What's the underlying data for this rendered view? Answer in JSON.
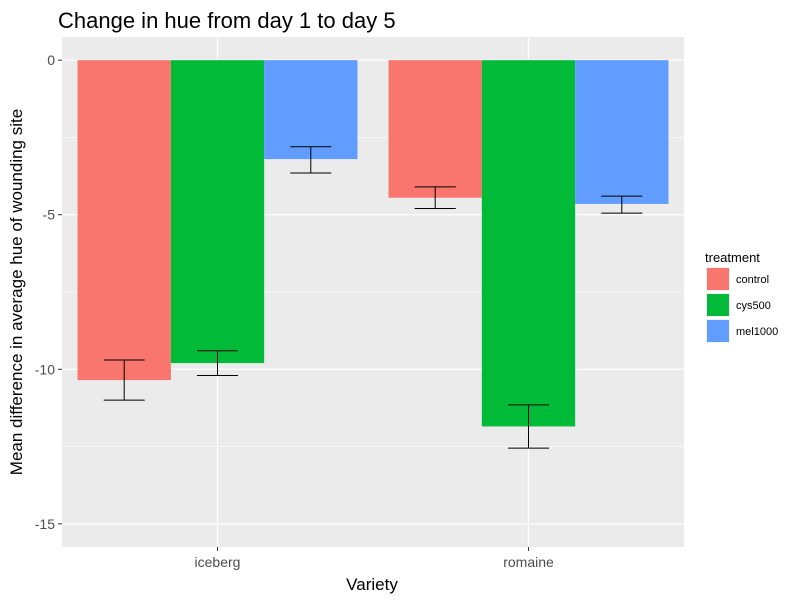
{
  "chart_data": {
    "type": "bar",
    "title": "Change in hue from day 1 to day 5",
    "xlabel": "Variety",
    "ylabel": "Mean difference in average hue of wounding site",
    "categories": [
      "iceberg",
      "romaine"
    ],
    "series": [
      {
        "name": "control",
        "color": "#F8766D",
        "values": [
          -10.35,
          -4.45
        ],
        "error_low": [
          -11.0,
          -4.8
        ],
        "error_high": [
          -9.7,
          -4.1
        ]
      },
      {
        "name": "cys500",
        "color": "#00BA38",
        "values": [
          -9.8,
          -11.85
        ],
        "error_low": [
          -10.2,
          -12.55
        ],
        "error_high": [
          -9.4,
          -11.15
        ]
      },
      {
        "name": "mel1000",
        "color": "#619CFF",
        "values": [
          -3.2,
          -4.65
        ],
        "error_low": [
          -3.65,
          -4.95
        ],
        "error_high": [
          -2.8,
          -4.4
        ]
      }
    ],
    "ylim": [
      -15.75,
      0.75
    ],
    "yticks": [
      0,
      -5,
      -10,
      -15
    ],
    "ytick_labels": [
      "0",
      "-5",
      "-10",
      "-15"
    ],
    "grid": true,
    "legend": {
      "title": "treatment",
      "position": "right"
    }
  }
}
